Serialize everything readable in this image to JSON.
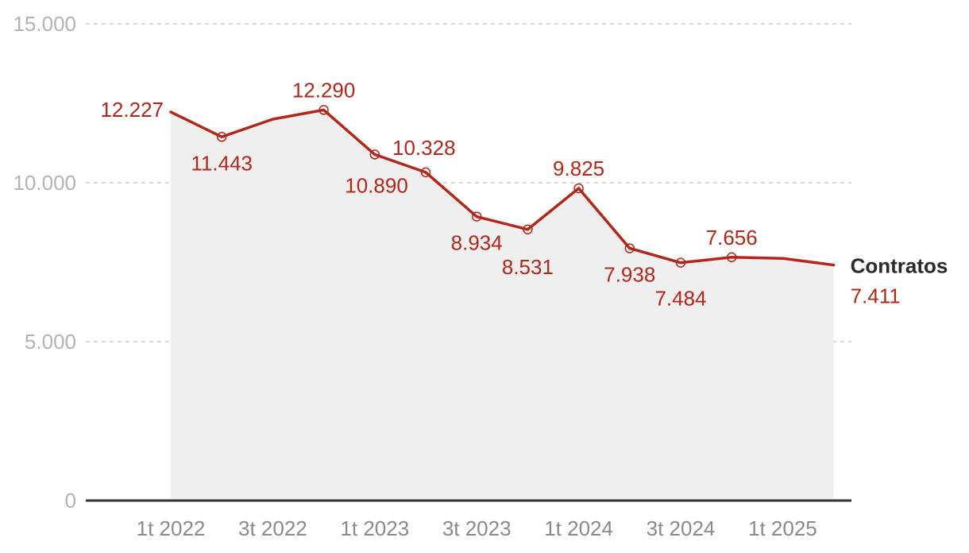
{
  "colors": {
    "line": "#b2271a",
    "area": "#efefef",
    "grid": "#cccccc",
    "axis": "#333333"
  },
  "chart_data": {
    "type": "area",
    "x": [
      "1t 2022",
      "2t 2022",
      "3t 2022",
      "4t 2022",
      "1t 2023",
      "2t 2023",
      "3t 2023",
      "4t 2023",
      "1t 2024",
      "2t 2024",
      "3t 2024",
      "4t 2024",
      "1t 2025",
      "2t 2025"
    ],
    "x_tick_labels": [
      "1t 2022",
      "3t 2022",
      "1t 2023",
      "3t 2023",
      "1t 2024",
      "3t 2024",
      "1t 2025"
    ],
    "series": [
      {
        "name": "Contratos",
        "values": [
          12227,
          11443,
          12000,
          12290,
          10890,
          10328,
          8934,
          8531,
          9825,
          7938,
          7484,
          7656,
          7620,
          7411
        ],
        "labels": [
          "12.227",
          "11.443",
          "",
          "12.290",
          "10.890",
          "10.328",
          "8.934",
          "8.531",
          "9.825",
          "7.938",
          "7.484",
          "7.656",
          "",
          "7.411"
        ]
      }
    ],
    "y_ticks": [
      {
        "value": 0,
        "label": "0"
      },
      {
        "value": 5000,
        "label": "5.000"
      },
      {
        "value": 10000,
        "label": "10.000"
      },
      {
        "value": 15000,
        "label": "15.000"
      }
    ],
    "ylim": [
      0,
      15000
    ],
    "grid": true,
    "legend": "end-of-line"
  }
}
